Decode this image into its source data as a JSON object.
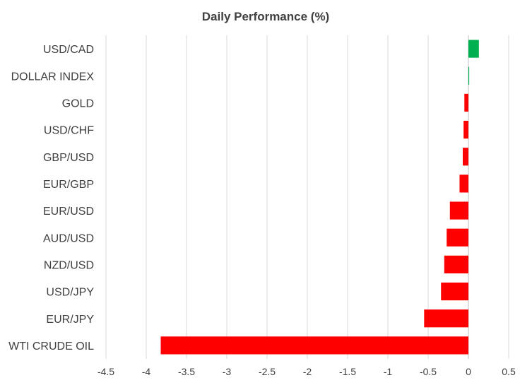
{
  "chart_data": {
    "type": "bar",
    "orientation": "horizontal",
    "title": "Daily Performance  (%)",
    "xlabel": "",
    "ylabel": "",
    "categories": [
      "USD/CAD",
      "DOLLAR INDEX",
      "GOLD",
      "USD/CHF",
      "GBP/USD",
      "EUR/GBP",
      "EUR/USD",
      "AUD/USD",
      "NZD/USD",
      "USD/JPY",
      "EUR/JPY",
      "WTI CRUDE OIL"
    ],
    "values": [
      0.13,
      0.01,
      -0.05,
      -0.06,
      -0.07,
      -0.11,
      -0.23,
      -0.27,
      -0.3,
      -0.34,
      -0.55,
      -3.82
    ],
    "xlim": [
      -4.5,
      0.5
    ],
    "xticks": [
      -4.5,
      -4,
      -3.5,
      -3,
      -2.5,
      -2,
      -1.5,
      -1,
      -0.5,
      0,
      0.5
    ],
    "xtick_labels": [
      "-4.5",
      "-4",
      "-3.5",
      "-3",
      "-2.5",
      "-2",
      "-1.5",
      "-1",
      "-0.5",
      "0",
      "0.5"
    ],
    "grid": true,
    "legend": "none",
    "colors": {
      "positive": "#00b050",
      "negative": "#ff0000",
      "grid": "#d9d9d9",
      "text": "#404040"
    }
  }
}
